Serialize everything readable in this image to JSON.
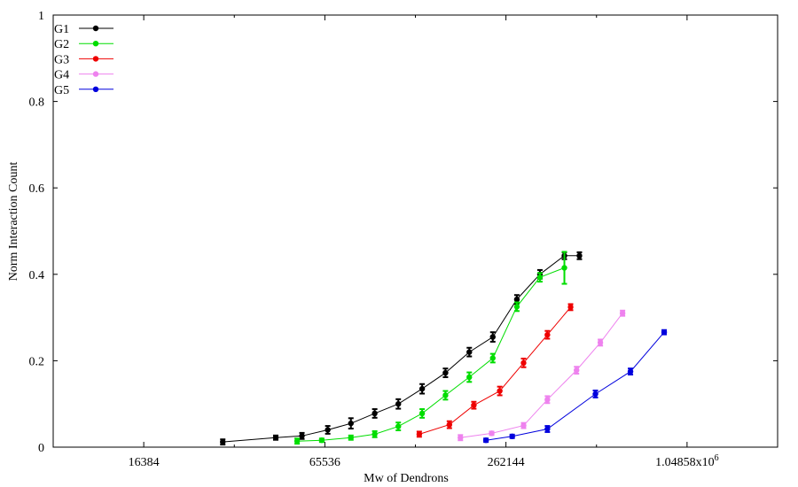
{
  "chart_data": {
    "type": "line",
    "xlabel": "Mw of Dendrons",
    "ylabel": "Norm Interaction Count",
    "xscale": "log2",
    "xlim": [
      8192,
      2097152
    ],
    "ylim": [
      0,
      1
    ],
    "x_ticks": [
      {
        "value": 16384,
        "label": "16384"
      },
      {
        "value": 65536,
        "label": "65536"
      },
      {
        "value": 262144,
        "label": "262144"
      },
      {
        "value": 1048576,
        "label": "1.04858x10",
        "sup": "6"
      }
    ],
    "y_ticks": [
      {
        "value": 0,
        "label": "0"
      },
      {
        "value": 0.2,
        "label": "0.2"
      },
      {
        "value": 0.4,
        "label": "0.4"
      },
      {
        "value": 0.6,
        "label": "0.6"
      },
      {
        "value": 0.8,
        "label": "0.8"
      },
      {
        "value": 1,
        "label": "1"
      }
    ],
    "legend_position": "top-left",
    "grid": false,
    "series": [
      {
        "name": "G1",
        "color": "#000000",
        "x": [
          30000,
          45000,
          55000,
          67000,
          80000,
          96000,
          115000,
          138000,
          165000,
          198000,
          237000,
          285000,
          340000,
          410000,
          460000
        ],
        "y": [
          0.012,
          0.022,
          0.026,
          0.04,
          0.055,
          0.078,
          0.1,
          0.135,
          0.172,
          0.22,
          0.255,
          0.342,
          0.4,
          0.443,
          0.443
        ],
        "err": [
          0.006,
          0.005,
          0.007,
          0.009,
          0.012,
          0.01,
          0.011,
          0.011,
          0.01,
          0.01,
          0.011,
          0.01,
          0.01,
          0.008,
          0.008
        ]
      },
      {
        "name": "G2",
        "color": "#00dd00",
        "x": [
          53000,
          64000,
          80000,
          96000,
          115000,
          138000,
          165000,
          198000,
          237000,
          285000,
          340000,
          410000
        ],
        "y": [
          0.014,
          0.016,
          0.022,
          0.03,
          0.048,
          0.078,
          0.12,
          0.162,
          0.206,
          0.325,
          0.393,
          0.415
        ],
        "err": [
          0.006,
          0.004,
          0.005,
          0.007,
          0.009,
          0.01,
          0.01,
          0.011,
          0.01,
          0.01,
          0.01,
          0.037
        ]
      },
      {
        "name": "G3",
        "color": "#ee0000",
        "x": [
          135000,
          170000,
          205000,
          250000,
          300000,
          360000,
          430000
        ],
        "y": [
          0.03,
          0.052,
          0.097,
          0.13,
          0.195,
          0.26,
          0.324
        ],
        "err": [
          0.006,
          0.008,
          0.008,
          0.01,
          0.01,
          0.009,
          0.007
        ]
      },
      {
        "name": "G4",
        "color": "#ee82ee",
        "x": [
          185000,
          235000,
          300000,
          360000,
          450000,
          540000,
          640000
        ],
        "y": [
          0.022,
          0.032,
          0.05,
          0.11,
          0.178,
          0.242,
          0.31
        ],
        "err": [
          0.006,
          0.004,
          0.006,
          0.008,
          0.008,
          0.007,
          0.006
        ]
      },
      {
        "name": "G5",
        "color": "#0000dd",
        "x": [
          225000,
          275000,
          360000,
          520000,
          680000,
          880000
        ],
        "y": [
          0.016,
          0.025,
          0.042,
          0.123,
          0.175,
          0.266
        ],
        "err": [
          0.004,
          0.004,
          0.007,
          0.008,
          0.007,
          0.005
        ]
      }
    ]
  }
}
